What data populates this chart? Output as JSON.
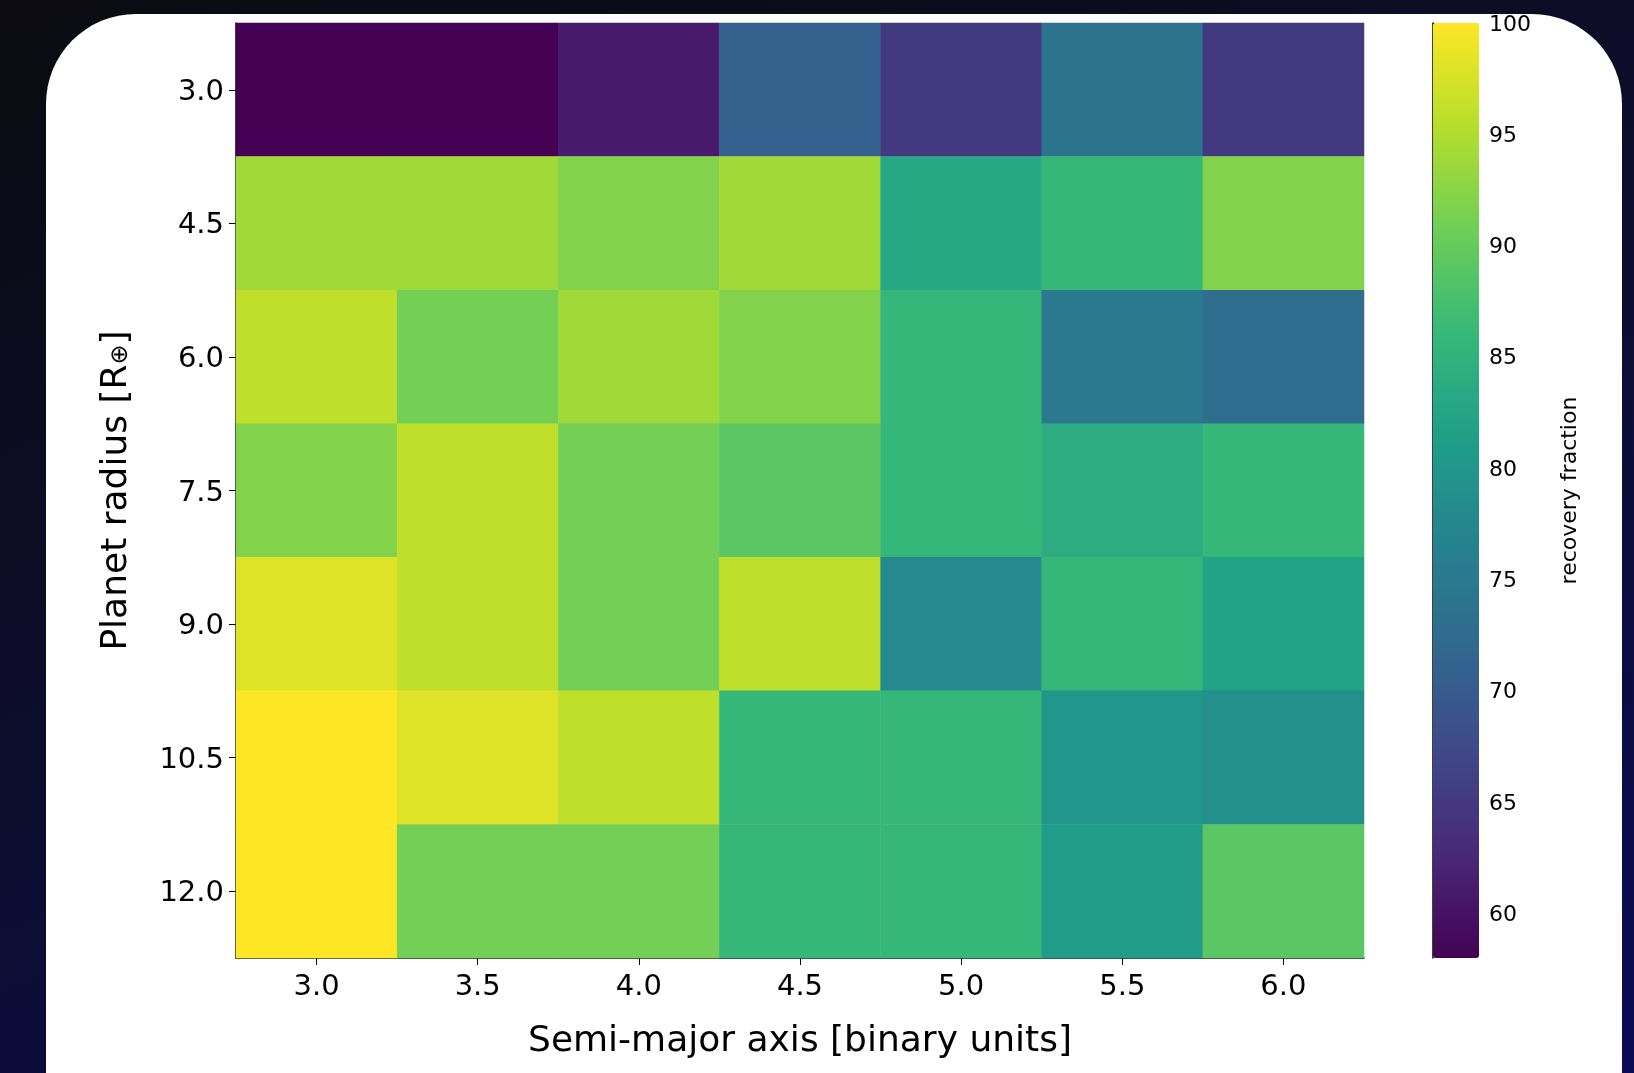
{
  "chart_data": {
    "type": "heatmap",
    "xlabel": "Semi-major axis [binary units]",
    "ylabel": "Planet radius [R$_{⊕}$]",
    "clabel": "recovery fraction",
    "categories": [
      "3.0",
      "3.5",
      "4.0",
      "4.5",
      "5.0",
      "5.5",
      "6.0"
    ],
    "y_categories": [
      "3.0",
      "4.5",
      "6.0",
      "7.5",
      "9.0",
      "10.5",
      "12.0"
    ],
    "cells": [
      [
        58,
        58,
        61,
        71,
        65,
        74,
        65
      ],
      [
        94,
        94,
        92,
        94,
        83,
        86,
        92
      ],
      [
        96,
        91,
        94,
        92,
        86,
        75,
        73
      ],
      [
        92,
        96,
        91,
        89,
        86,
        84,
        86
      ],
      [
        98,
        96,
        91,
        96,
        78,
        86,
        82
      ],
      [
        100,
        98,
        96,
        86,
        86,
        80,
        79
      ],
      [
        100,
        91,
        91,
        86,
        86,
        81,
        89
      ]
    ],
    "clim": [
      58,
      100
    ],
    "cticks": [
      60,
      65,
      70,
      75,
      80,
      85,
      90,
      95,
      100
    ]
  }
}
